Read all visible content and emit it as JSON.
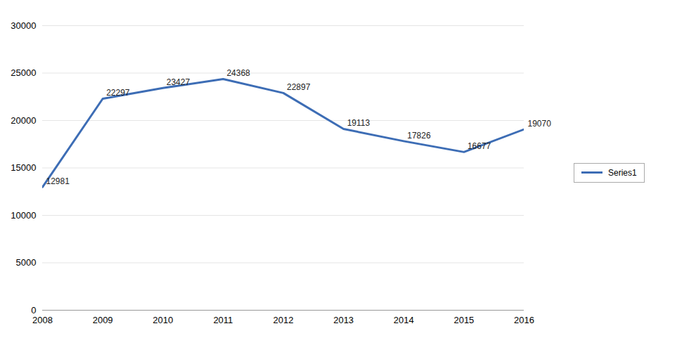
{
  "chart_data": {
    "type": "line",
    "x": [
      2008,
      2009,
      2010,
      2011,
      2012,
      2013,
      2014,
      2015,
      2016
    ],
    "series": [
      {
        "name": "Series1",
        "color": "#3d6db5",
        "values": [
          12981,
          22297,
          23427,
          24368,
          22897,
          19113,
          17826,
          16677,
          19070
        ]
      }
    ],
    "xlim": [
      2008,
      2016
    ],
    "xticks": [
      2008,
      2009,
      2010,
      2011,
      2012,
      2013,
      2014,
      2015,
      2016
    ],
    "ylim": [
      0,
      30000
    ],
    "yticks": [
      0,
      5000,
      10000,
      15000,
      20000,
      25000,
      30000
    ],
    "grid": true,
    "legend": "right",
    "data_labels": true
  }
}
